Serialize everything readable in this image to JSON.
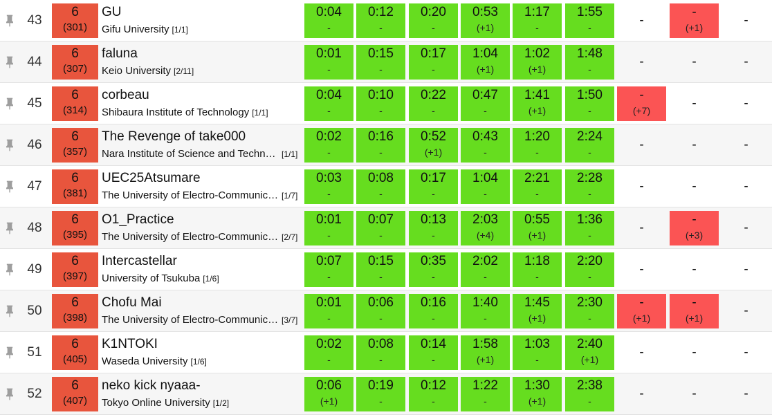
{
  "colors": {
    "score_bg": "#e8553d",
    "solved_bg": "#66dd1f",
    "failed_bg": "#fb5454",
    "row_alt_bg": "#f6f6f6"
  },
  "icons": {
    "pin": "pin-icon"
  },
  "teams": [
    {
      "rank": "43",
      "solved": "6",
      "penalty": "(301)",
      "name": "GU",
      "university": "Gifu University",
      "badge": "[1/1]",
      "problems": [
        {
          "status": "solved",
          "time": "0:04",
          "tries": "-"
        },
        {
          "status": "solved",
          "time": "0:12",
          "tries": "-"
        },
        {
          "status": "solved",
          "time": "0:20",
          "tries": "-"
        },
        {
          "status": "solved",
          "time": "0:53",
          "tries": "(+1)"
        },
        {
          "status": "solved",
          "time": "1:17",
          "tries": "-"
        },
        {
          "status": "solved",
          "time": "1:55",
          "tries": "-"
        },
        {
          "status": "none",
          "time": "-",
          "tries": ""
        },
        {
          "status": "failed",
          "time": "-",
          "tries": "(+1)"
        },
        {
          "status": "none",
          "time": "-",
          "tries": ""
        }
      ]
    },
    {
      "rank": "44",
      "solved": "6",
      "penalty": "(307)",
      "name": "faluna",
      "university": "Keio University",
      "badge": "[2/11]",
      "problems": [
        {
          "status": "solved",
          "time": "0:01",
          "tries": "-"
        },
        {
          "status": "solved",
          "time": "0:15",
          "tries": "-"
        },
        {
          "status": "solved",
          "time": "0:17",
          "tries": "-"
        },
        {
          "status": "solved",
          "time": "1:04",
          "tries": "(+1)"
        },
        {
          "status": "solved",
          "time": "1:02",
          "tries": "(+1)"
        },
        {
          "status": "solved",
          "time": "1:48",
          "tries": "-"
        },
        {
          "status": "none",
          "time": "-",
          "tries": ""
        },
        {
          "status": "none",
          "time": "-",
          "tries": ""
        },
        {
          "status": "none",
          "time": "-",
          "tries": ""
        }
      ]
    },
    {
      "rank": "45",
      "solved": "6",
      "penalty": "(314)",
      "name": "corbeau",
      "university": "Shibaura Institute of Technology",
      "badge": "[1/1]",
      "problems": [
        {
          "status": "solved",
          "time": "0:04",
          "tries": "-"
        },
        {
          "status": "solved",
          "time": "0:10",
          "tries": "-"
        },
        {
          "status": "solved",
          "time": "0:22",
          "tries": "-"
        },
        {
          "status": "solved",
          "time": "0:47",
          "tries": "-"
        },
        {
          "status": "solved",
          "time": "1:41",
          "tries": "(+1)"
        },
        {
          "status": "solved",
          "time": "1:50",
          "tries": "-"
        },
        {
          "status": "failed",
          "time": "-",
          "tries": "(+7)"
        },
        {
          "status": "none",
          "time": "-",
          "tries": ""
        },
        {
          "status": "none",
          "time": "-",
          "tries": ""
        }
      ]
    },
    {
      "rank": "46",
      "solved": "6",
      "penalty": "(357)",
      "name": "The Revenge of take000",
      "university": "Nara Institute of Science and Technology",
      "badge": "[1/1]",
      "truncate": true,
      "problems": [
        {
          "status": "solved",
          "time": "0:02",
          "tries": "-"
        },
        {
          "status": "solved",
          "time": "0:16",
          "tries": "-"
        },
        {
          "status": "solved",
          "time": "0:52",
          "tries": "(+1)"
        },
        {
          "status": "solved",
          "time": "0:43",
          "tries": "-"
        },
        {
          "status": "solved",
          "time": "1:20",
          "tries": "-"
        },
        {
          "status": "solved",
          "time": "2:24",
          "tries": "-"
        },
        {
          "status": "none",
          "time": "-",
          "tries": ""
        },
        {
          "status": "none",
          "time": "-",
          "tries": ""
        },
        {
          "status": "none",
          "time": "-",
          "tries": ""
        }
      ]
    },
    {
      "rank": "47",
      "solved": "6",
      "penalty": "(381)",
      "name": "UEC25Atsumare",
      "university": "The University of Electro-Communications",
      "badge": "[1/7]",
      "truncate": true,
      "problems": [
        {
          "status": "solved",
          "time": "0:03",
          "tries": "-"
        },
        {
          "status": "solved",
          "time": "0:08",
          "tries": "-"
        },
        {
          "status": "solved",
          "time": "0:17",
          "tries": "-"
        },
        {
          "status": "solved",
          "time": "1:04",
          "tries": "-"
        },
        {
          "status": "solved",
          "time": "2:21",
          "tries": "-"
        },
        {
          "status": "solved",
          "time": "2:28",
          "tries": "-"
        },
        {
          "status": "none",
          "time": "-",
          "tries": ""
        },
        {
          "status": "none",
          "time": "-",
          "tries": ""
        },
        {
          "status": "none",
          "time": "-",
          "tries": ""
        }
      ]
    },
    {
      "rank": "48",
      "solved": "6",
      "penalty": "(395)",
      "name": "O1_Practice",
      "university": "The University of Electro-Communications",
      "badge": "[2/7]",
      "truncate": true,
      "problems": [
        {
          "status": "solved",
          "time": "0:01",
          "tries": "-"
        },
        {
          "status": "solved",
          "time": "0:07",
          "tries": "-"
        },
        {
          "status": "solved",
          "time": "0:13",
          "tries": "-"
        },
        {
          "status": "solved",
          "time": "2:03",
          "tries": "(+4)"
        },
        {
          "status": "solved",
          "time": "0:55",
          "tries": "(+1)"
        },
        {
          "status": "solved",
          "time": "1:36",
          "tries": "-"
        },
        {
          "status": "none",
          "time": "-",
          "tries": ""
        },
        {
          "status": "failed",
          "time": "-",
          "tries": "(+3)"
        },
        {
          "status": "none",
          "time": "-",
          "tries": ""
        }
      ]
    },
    {
      "rank": "49",
      "solved": "6",
      "penalty": "(397)",
      "name": "Intercastellar",
      "university": "University of Tsukuba",
      "badge": "[1/6]",
      "problems": [
        {
          "status": "solved",
          "time": "0:07",
          "tries": "-"
        },
        {
          "status": "solved",
          "time": "0:15",
          "tries": "-"
        },
        {
          "status": "solved",
          "time": "0:35",
          "tries": "-"
        },
        {
          "status": "solved",
          "time": "2:02",
          "tries": "-"
        },
        {
          "status": "solved",
          "time": "1:18",
          "tries": "-"
        },
        {
          "status": "solved",
          "time": "2:20",
          "tries": "-"
        },
        {
          "status": "none",
          "time": "-",
          "tries": ""
        },
        {
          "status": "none",
          "time": "-",
          "tries": ""
        },
        {
          "status": "none",
          "time": "-",
          "tries": ""
        }
      ]
    },
    {
      "rank": "50",
      "solved": "6",
      "penalty": "(398)",
      "name": "Chofu Mai",
      "university": "The University of Electro-Communications",
      "badge": "[3/7]",
      "truncate": true,
      "problems": [
        {
          "status": "solved",
          "time": "0:01",
          "tries": "-"
        },
        {
          "status": "solved",
          "time": "0:06",
          "tries": "-"
        },
        {
          "status": "solved",
          "time": "0:16",
          "tries": "-"
        },
        {
          "status": "solved",
          "time": "1:40",
          "tries": "-"
        },
        {
          "status": "solved",
          "time": "1:45",
          "tries": "(+1)"
        },
        {
          "status": "solved",
          "time": "2:30",
          "tries": "-"
        },
        {
          "status": "failed",
          "time": "-",
          "tries": "(+1)"
        },
        {
          "status": "failed",
          "time": "-",
          "tries": "(+1)"
        },
        {
          "status": "none",
          "time": "-",
          "tries": ""
        }
      ]
    },
    {
      "rank": "51",
      "solved": "6",
      "penalty": "(405)",
      "name": "K1NTOKI",
      "university": "Waseda University",
      "badge": "[1/6]",
      "problems": [
        {
          "status": "solved",
          "time": "0:02",
          "tries": "-"
        },
        {
          "status": "solved",
          "time": "0:08",
          "tries": "-"
        },
        {
          "status": "solved",
          "time": "0:14",
          "tries": "-"
        },
        {
          "status": "solved",
          "time": "1:58",
          "tries": "(+1)"
        },
        {
          "status": "solved",
          "time": "1:03",
          "tries": "-"
        },
        {
          "status": "solved",
          "time": "2:40",
          "tries": "(+1)"
        },
        {
          "status": "none",
          "time": "-",
          "tries": ""
        },
        {
          "status": "none",
          "time": "-",
          "tries": ""
        },
        {
          "status": "none",
          "time": "-",
          "tries": ""
        }
      ]
    },
    {
      "rank": "52",
      "solved": "6",
      "penalty": "(407)",
      "name": "neko kick nyaaa-",
      "university": "Tokyo Online University",
      "badge": "[1/2]",
      "problems": [
        {
          "status": "solved",
          "time": "0:06",
          "tries": "(+1)"
        },
        {
          "status": "solved",
          "time": "0:19",
          "tries": "-"
        },
        {
          "status": "solved",
          "time": "0:12",
          "tries": "-"
        },
        {
          "status": "solved",
          "time": "1:22",
          "tries": "-"
        },
        {
          "status": "solved",
          "time": "1:30",
          "tries": "(+1)"
        },
        {
          "status": "solved",
          "time": "2:38",
          "tries": "-"
        },
        {
          "status": "none",
          "time": "-",
          "tries": ""
        },
        {
          "status": "none",
          "time": "-",
          "tries": ""
        },
        {
          "status": "none",
          "time": "-",
          "tries": ""
        }
      ]
    }
  ]
}
